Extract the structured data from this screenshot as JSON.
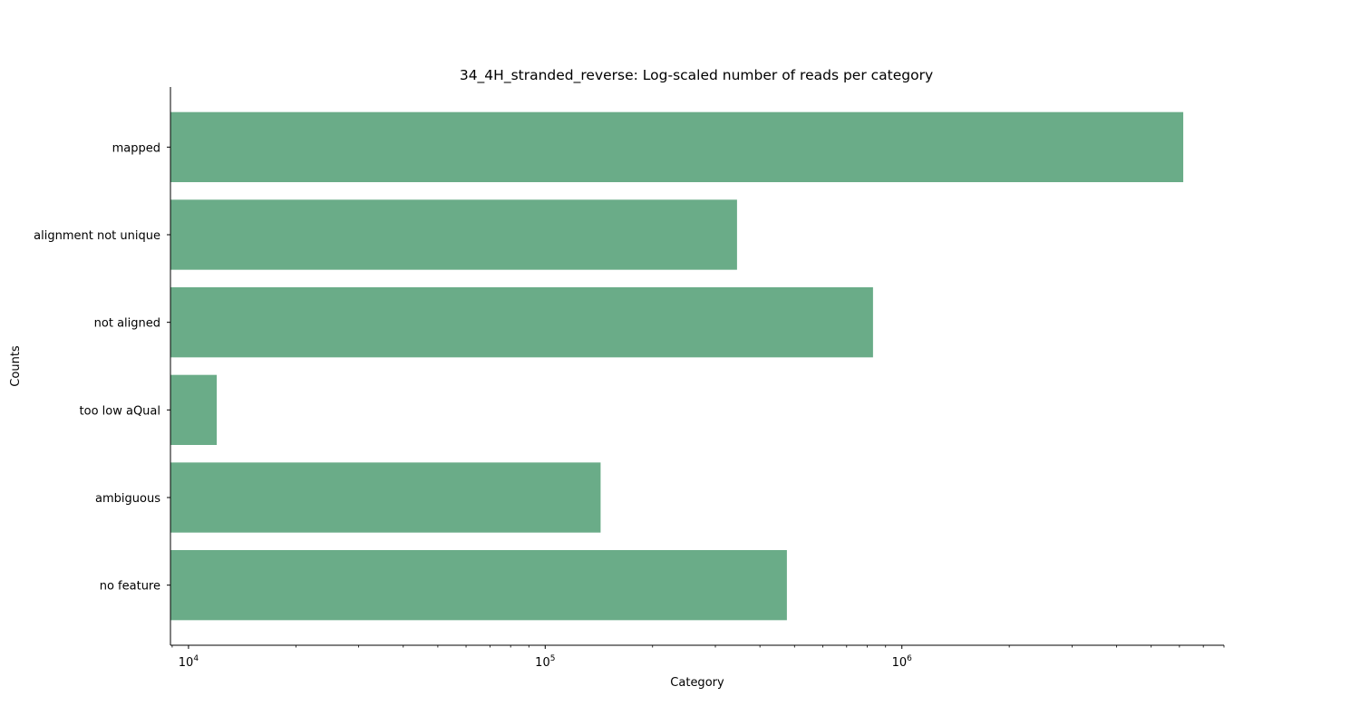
{
  "chart_data": {
    "type": "bar",
    "orientation": "horizontal",
    "title": "34_4H_stranded_reverse: Log-scaled number of reads per category",
    "xlabel": "Category",
    "ylabel": "Counts",
    "xscale": "log",
    "xlim": [
      8900,
      8000000
    ],
    "xticks": [
      {
        "value": 10000,
        "base": "10",
        "exp": "4"
      },
      {
        "value": 100000,
        "base": "10",
        "exp": "5"
      },
      {
        "value": 1000000,
        "base": "10",
        "exp": "6"
      }
    ],
    "categories": [
      "mapped",
      "alignment not unique",
      "not aligned",
      "too low aQual",
      "ambiguous",
      "no feature"
    ],
    "values": [
      6150000,
      345000,
      830000,
      12000,
      143000,
      476000
    ],
    "bar_color": "#6aac88",
    "grid": false,
    "legend": "none"
  }
}
